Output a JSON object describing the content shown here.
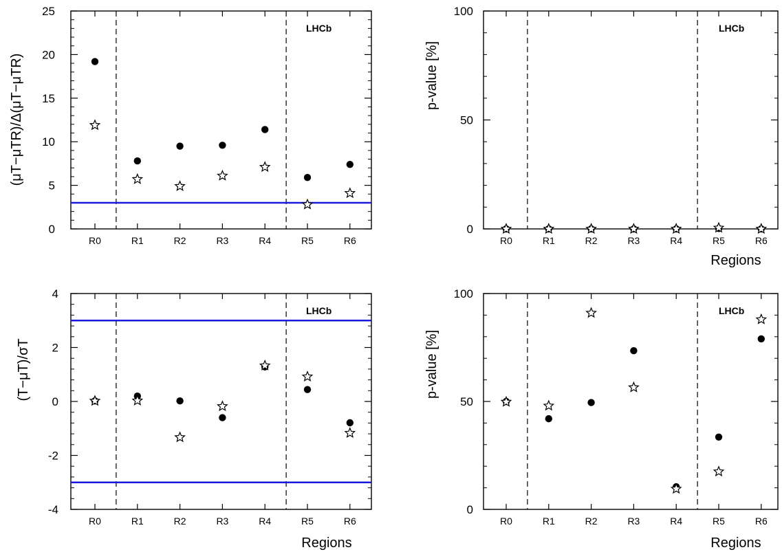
{
  "chart_data": [
    {
      "type": "scatter",
      "id": "tl",
      "categories": [
        "R0",
        "R1",
        "R2",
        "R3",
        "R4",
        "R5",
        "R6"
      ],
      "xlabel": "",
      "ylabel": "(μT−μTR)/Δ(μT−μTR)",
      "ylim": [
        0,
        25
      ],
      "yticks": [
        "0",
        "5",
        "10",
        "15",
        "20",
        "25"
      ],
      "annotation": "LHCb",
      "series": [
        {
          "marker": "circle",
          "values": [
            19.2,
            7.8,
            9.5,
            9.6,
            11.4,
            5.9,
            7.4
          ]
        },
        {
          "marker": "star",
          "values": [
            11.9,
            5.7,
            4.9,
            6.1,
            7.1,
            2.8,
            4.1
          ]
        }
      ],
      "reference_lines": [
        3
      ],
      "region_dividers_after": [
        "R0",
        "R4"
      ],
      "line_color": "#1a1adc"
    },
    {
      "type": "scatter",
      "id": "tr",
      "categories": [
        "R0",
        "R1",
        "R2",
        "R3",
        "R4",
        "R5",
        "R6"
      ],
      "xlabel": "Regions",
      "ylabel": "p-value [%]",
      "ylim": [
        0,
        100
      ],
      "yticks": [
        "0",
        "50",
        "100"
      ],
      "annotation": "LHCb",
      "series": [
        {
          "marker": "circle",
          "values": [
            0,
            0,
            0,
            0,
            0,
            0.2,
            0
          ]
        },
        {
          "marker": "star",
          "values": [
            0,
            0,
            0,
            0,
            0,
            0.5,
            0
          ]
        }
      ],
      "reference_lines": [],
      "region_dividers_after": [
        "R0",
        "R4"
      ]
    },
    {
      "type": "scatter",
      "id": "bl",
      "categories": [
        "R0",
        "R1",
        "R2",
        "R3",
        "R4",
        "R5",
        "R6"
      ],
      "xlabel": "Regions",
      "ylabel": "(T−μT)/σT",
      "ylim": [
        -4,
        4
      ],
      "yticks": [
        "-4",
        "-2",
        "0",
        "2",
        "4"
      ],
      "annotation": "LHCb",
      "series": [
        {
          "marker": "circle",
          "values": [
            0.02,
            0.2,
            0.02,
            -0.6,
            1.28,
            0.44,
            -0.79
          ]
        },
        {
          "marker": "star",
          "values": [
            0.02,
            0.03,
            -1.33,
            -0.18,
            1.33,
            0.92,
            -1.17
          ]
        }
      ],
      "reference_lines": [
        3,
        -3
      ],
      "region_dividers_after": [
        "R0",
        "R4"
      ],
      "line_color": "#1a1adc"
    },
    {
      "type": "scatter",
      "id": "br",
      "categories": [
        "R0",
        "R1",
        "R2",
        "R3",
        "R4",
        "R5",
        "R6"
      ],
      "xlabel": "Regions",
      "ylabel": "p-value [%]",
      "ylim": [
        0,
        100
      ],
      "yticks": [
        "0",
        "50",
        "100"
      ],
      "annotation": "LHCb",
      "series": [
        {
          "marker": "circle",
          "values": [
            50,
            42,
            49.5,
            73.5,
            10.5,
            33.5,
            79
          ]
        },
        {
          "marker": "star",
          "values": [
            49.8,
            48,
            91,
            56.5,
            9.5,
            17.5,
            88
          ]
        }
      ],
      "reference_lines": [],
      "region_dividers_after": [
        "R0",
        "R4"
      ]
    }
  ]
}
